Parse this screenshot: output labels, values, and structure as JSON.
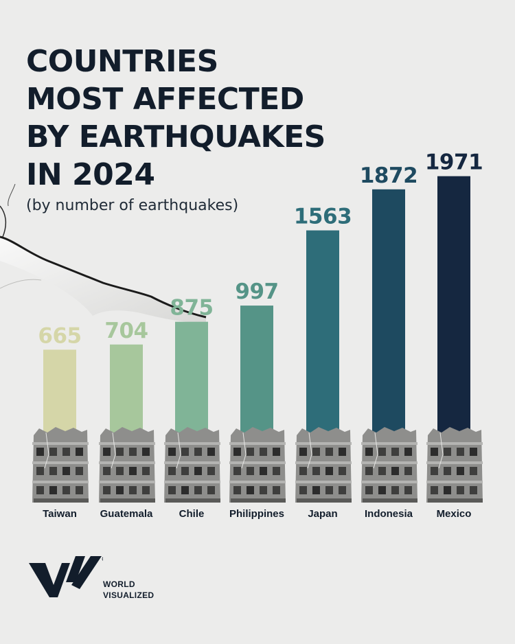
{
  "title_lines": [
    "COUNTRIES",
    "MOST AFFECTED",
    "BY EARTHQUAKES",
    "IN 2024"
  ],
  "subtitle": "(by number of earthquakes)",
  "brand": {
    "line1": "WORLD",
    "line2": "VISUALIZED",
    "logo_icon": "wv-logo-icon"
  },
  "colors": {
    "background": "#ececeb",
    "title": "#121d2b",
    "bars": [
      "#d5d6a8",
      "#a7c79c",
      "#80b497",
      "#559487",
      "#2e6d79",
      "#1e4a60",
      "#152740"
    ]
  },
  "chart_data": {
    "type": "bar",
    "categories": [
      "Taiwan",
      "Guatemala",
      "Chile",
      "Philippines",
      "Japan",
      "Indonesia",
      "Mexico"
    ],
    "values": [
      665,
      704,
      875,
      997,
      1563,
      1872,
      1971
    ],
    "data_labels": [
      "665",
      "704",
      "875",
      "997",
      "1563",
      "1872",
      "1971"
    ],
    "title": "COUNTRIES MOST AFFECTED BY EARTHQUAKES IN 2024",
    "subtitle": "(by number of earthquakes)",
    "xlabel": "",
    "ylabel": "",
    "grid": false,
    "legend": "none"
  }
}
